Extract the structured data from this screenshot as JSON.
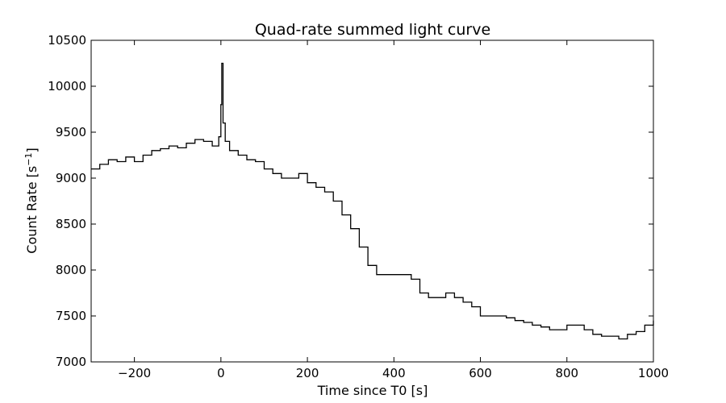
{
  "chart_data": {
    "type": "line",
    "title": "Quad-rate summed light curve",
    "xlabel": "Time since T0 [s]",
    "ylabel_main": "Count Rate [s",
    "ylabel_sup": "−1",
    "ylabel_end": "]",
    "xlim": [
      -300,
      1000
    ],
    "ylim": [
      7000,
      10500
    ],
    "xticks": [
      -200,
      0,
      200,
      400,
      600,
      800,
      1000
    ],
    "xtick_labels": [
      "−200",
      "0",
      "200",
      "400",
      "600",
      "800",
      "1000"
    ],
    "yticks": [
      7000,
      7500,
      8000,
      8500,
      9000,
      9500,
      10000,
      10500
    ],
    "ytick_labels": [
      "7000",
      "7500",
      "8000",
      "8500",
      "9000",
      "9500",
      "10000",
      "10500"
    ],
    "grid": false,
    "legend": "none",
    "series": [
      {
        "style": "steps",
        "color": "#000000",
        "x": [
          -300,
          -280,
          -260,
          -240,
          -220,
          -200,
          -180,
          -160,
          -140,
          -120,
          -100,
          -80,
          -60,
          -40,
          -20,
          -5,
          0,
          2,
          5,
          10,
          20,
          40,
          60,
          80,
          100,
          120,
          140,
          160,
          180,
          200,
          220,
          240,
          260,
          280,
          300,
          320,
          340,
          360,
          380,
          400,
          420,
          440,
          460,
          480,
          500,
          520,
          540,
          560,
          580,
          600,
          620,
          640,
          660,
          680,
          700,
          720,
          740,
          760,
          780,
          800,
          820,
          840,
          860,
          880,
          900,
          920,
          940,
          960,
          980,
          1000
        ],
        "y": [
          9100,
          9150,
          9200,
          9180,
          9230,
          9180,
          9250,
          9300,
          9320,
          9350,
          9330,
          9380,
          9420,
          9400,
          9350,
          9450,
          9800,
          10250,
          9600,
          9400,
          9300,
          9250,
          9200,
          9180,
          9100,
          9050,
          9000,
          9000,
          9050,
          8950,
          8900,
          8850,
          8750,
          8600,
          8450,
          8250,
          8050,
          7950,
          7950,
          7950,
          7950,
          7900,
          7750,
          7700,
          7700,
          7750,
          7700,
          7650,
          7600,
          7500,
          7500,
          7500,
          7480,
          7450,
          7430,
          7400,
          7380,
          7350,
          7350,
          7400,
          7400,
          7350,
          7300,
          7280,
          7280,
          7250,
          7300,
          7330,
          7400,
          7450
        ]
      }
    ]
  }
}
